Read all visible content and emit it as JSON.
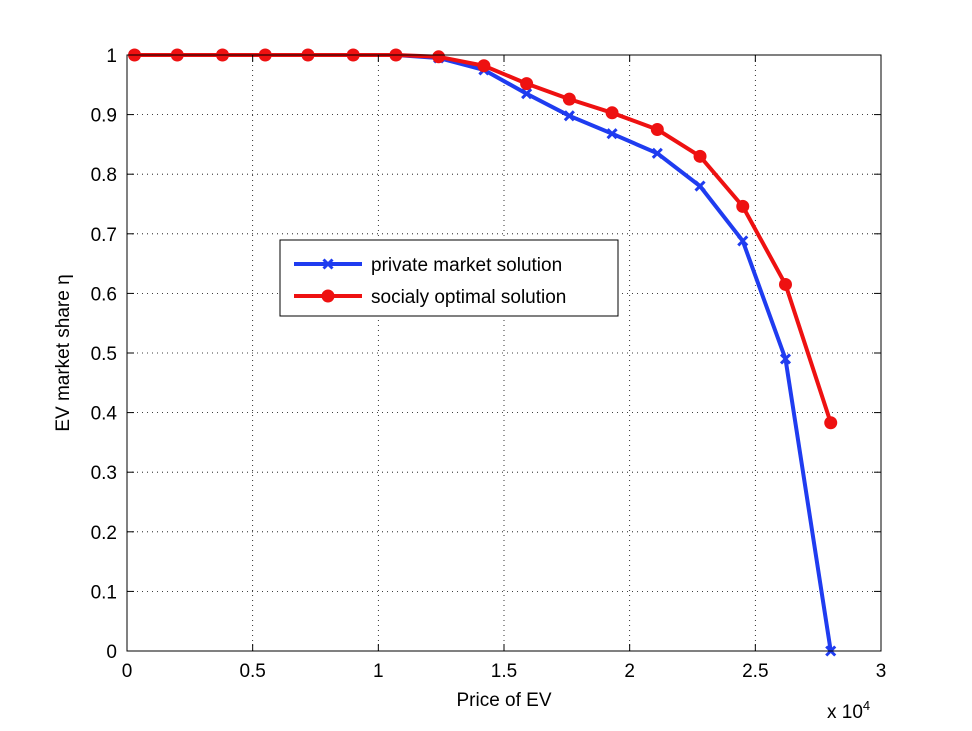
{
  "chart_data": {
    "type": "line",
    "xlabel": "Price of EV",
    "ylabel": "EV market share η",
    "x_multiplier": "x 10",
    "x_multiplier_exp": "4",
    "xlim": [
      0,
      3
    ],
    "ylim": [
      0,
      1
    ],
    "xticks": [
      "0",
      "0.5",
      "1",
      "1.5",
      "2",
      "2.5",
      "3"
    ],
    "yticks": [
      "0",
      "0.1",
      "0.2",
      "0.3",
      "0.4",
      "0.5",
      "0.6",
      "0.7",
      "0.8",
      "0.9",
      "1"
    ],
    "grid": true,
    "legend_position": "center-left",
    "x": [
      0.03,
      0.2,
      0.38,
      0.55,
      0.72,
      0.9,
      1.07,
      1.24,
      1.42,
      1.59,
      1.76,
      1.93,
      2.11,
      2.28,
      2.45,
      2.62,
      2.8
    ],
    "series": [
      {
        "name": "private market solution",
        "color": "#1f3cf0",
        "marker": "x",
        "values": [
          1.0,
          1.0,
          1.0,
          1.0,
          1.0,
          1.0,
          1.0,
          0.995,
          0.975,
          0.935,
          0.898,
          0.868,
          0.835,
          0.78,
          0.688,
          0.49,
          0.0
        ]
      },
      {
        "name": "socialy optimal solution",
        "color": "#ee1111",
        "marker": "circle",
        "values": [
          1.0,
          1.0,
          1.0,
          1.0,
          1.0,
          1.0,
          1.0,
          0.997,
          0.982,
          0.952,
          0.926,
          0.903,
          0.875,
          0.83,
          0.746,
          0.615,
          0.383
        ]
      }
    ]
  }
}
